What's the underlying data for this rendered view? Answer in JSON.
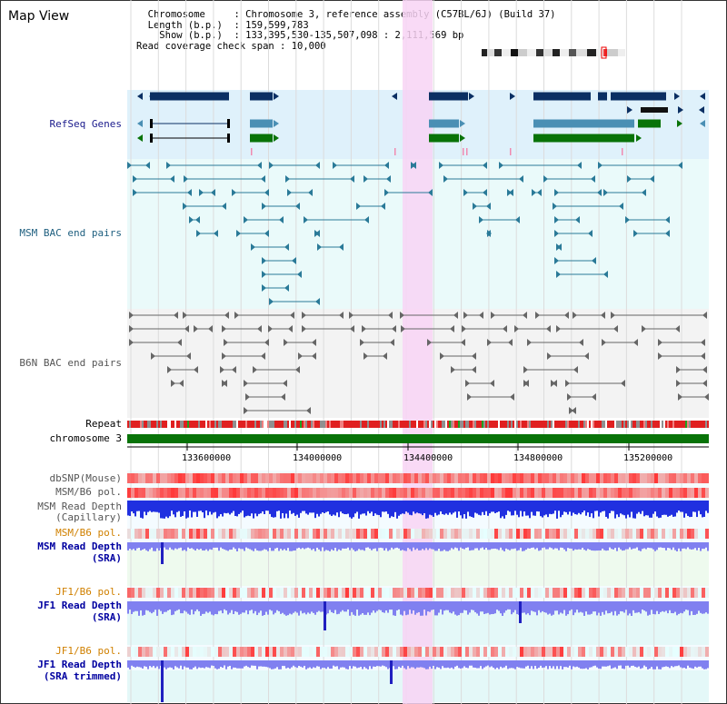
{
  "header": {
    "title": "Map View"
  },
  "info": {
    "chromosome_label": "Chromosome",
    "chromosome_value": "Chromosome 3, reference assembly (C57BL/6J) (Build 37)",
    "length_label": "Length (b.p.)",
    "length_value": "159,599,783",
    "show_label": "Show (b.p.)",
    "show_value": "133,395,530-135,507,098 : 2,111,569 bp",
    "span_label": "Read coverage check span",
    "span_value": "10,000"
  },
  "tracks": {
    "refseq": "RefSeq Genes",
    "msm_bac": "MSM BAC end pairs",
    "b6n_bac": "B6N BAC end pairs",
    "repeat": "Repeat",
    "chromosome": "chromosome 3",
    "dbsnp": "dbSNP(Mouse)",
    "msm_b6_pol_1": "MSM/B6 pol.",
    "msm_depth_cap_1": "MSM Read Depth",
    "msm_depth_cap_2": "(Capillary)",
    "msm_b6_pol_2": "MSM/B6 pol.",
    "msm_depth_sra_1": "MSM Read Depth",
    "msm_depth_sra_2": "(SRA)",
    "jf1_pol_1": "JF1/B6 pol.",
    "jf1_depth_1": "JF1 Read Depth",
    "jf1_depth_2": "(SRA)",
    "jf1_pol_2": "JF1/B6 pol.",
    "jf1_trim_1": "JF1 Read Depth",
    "jf1_trim_2": "(SRA trimmed)"
  },
  "axis": {
    "ticks": [
      "133600000",
      "134000000",
      "134400000",
      "134800000",
      "135200000"
    ]
  },
  "colors": {
    "refseq_bg": "#dff1fb",
    "msm_bg": "#eafafa",
    "b6n_bg": "#f3f3f3",
    "highlight": "#f8d4f4",
    "gene_navy": "#0b2f63",
    "gene_steel": "#4a8fb4",
    "gene_green": "#087308",
    "chromosome_bar": "#087308",
    "depth_blue": "#2030e0",
    "depth_light": "#8080f0"
  }
}
